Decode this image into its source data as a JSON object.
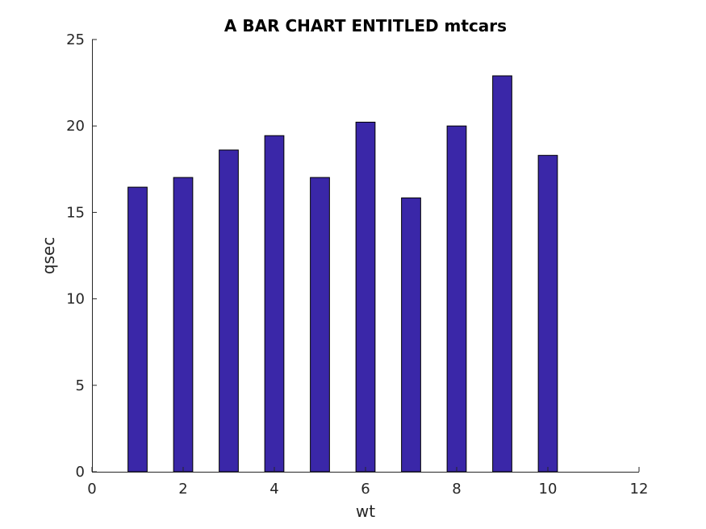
{
  "chart_data": {
    "type": "bar",
    "title": "A BAR CHART ENTITLED mtcars",
    "xlabel": "wt",
    "ylabel": "qsec",
    "x": [
      1,
      2,
      3,
      4,
      5,
      6,
      7,
      8,
      9,
      10
    ],
    "values": [
      16.46,
      17.02,
      18.61,
      19.44,
      17.02,
      20.22,
      15.84,
      20.0,
      22.9,
      18.3
    ],
    "xlim": [
      0,
      12
    ],
    "ylim": [
      0,
      25
    ],
    "xticks": [
      0,
      2,
      4,
      6,
      8,
      10,
      12
    ],
    "yticks": [
      0,
      5,
      10,
      15,
      20,
      25
    ],
    "bar_color": "#3a27a8",
    "bar_edge_color": "#000000",
    "grid": false,
    "legend": "none"
  }
}
